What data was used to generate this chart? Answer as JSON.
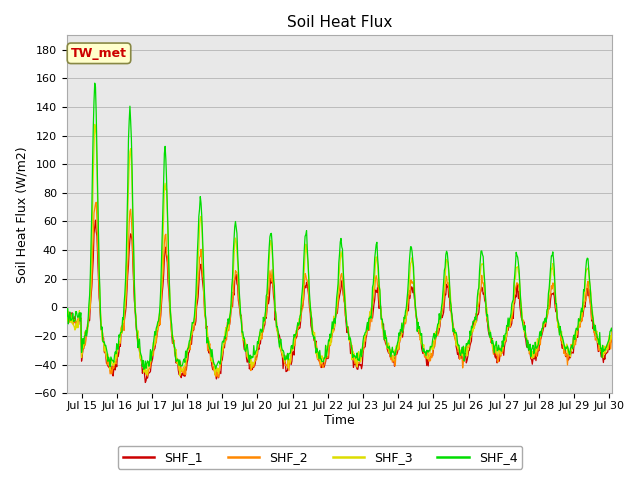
{
  "title": "Soil Heat Flux",
  "ylabel": "Soil Heat Flux (W/m2)",
  "xlabel": "Time",
  "ylim": [
    -60,
    190
  ],
  "yticks": [
    -60,
    -40,
    -20,
    0,
    20,
    40,
    60,
    80,
    100,
    120,
    140,
    160,
    180
  ],
  "xlim_days": [
    14.58,
    30.08
  ],
  "xtick_labels": [
    "Jul 15",
    "Jul 16",
    "Jul 17",
    "Jul 18",
    "Jul 19",
    "Jul 20",
    "Jul 21",
    "Jul 22",
    "Jul 23",
    "Jul 24",
    "Jul 25",
    "Jul 26",
    "Jul 27",
    "Jul 28",
    "Jul 29",
    "Jul 30"
  ],
  "xtick_positions": [
    15,
    16,
    17,
    18,
    19,
    20,
    21,
    22,
    23,
    24,
    25,
    26,
    27,
    28,
    29,
    30
  ],
  "colors": {
    "SHF_1": "#cc0000",
    "SHF_2": "#ff8800",
    "SHF_3": "#dddd00",
    "SHF_4": "#00dd00"
  },
  "legend_labels": [
    "SHF_1",
    "SHF_2",
    "SHF_3",
    "SHF_4"
  ],
  "annotation_text": "TW_met",
  "annotation_color": "#cc0000",
  "annotation_bg": "#ffffcc",
  "annotation_edge": "#888844",
  "grid_color": "#bbbbbb",
  "plot_bg": "#e8e8e8",
  "fig_bg": "#ffffff",
  "linewidth": 0.9
}
